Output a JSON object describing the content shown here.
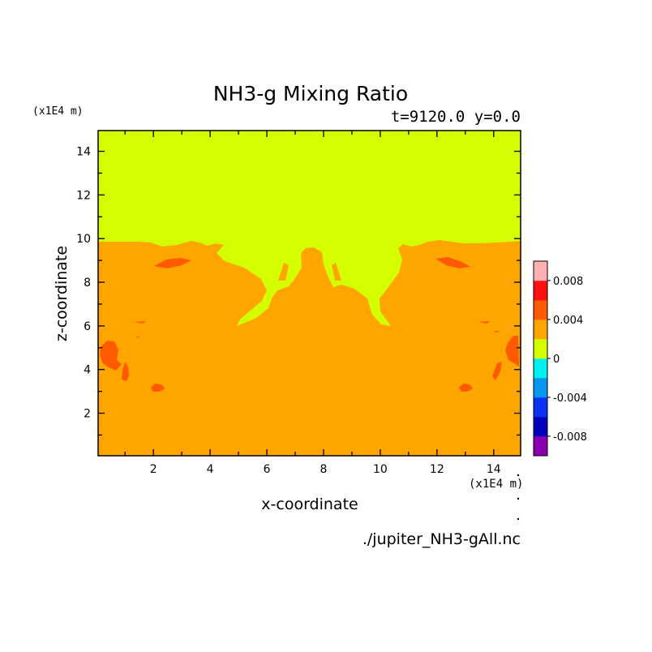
{
  "chart_data": {
    "type": "heatmap",
    "title": "NH3-g Mixing Ratio",
    "subtitle": "t=9120.0 y=0.0",
    "xlabel": "x-coordinate",
    "ylabel": "z-coordinate",
    "x_unit": "(x1E4 m)",
    "y_unit": "(x1E4 m)",
    "xlim": [
      0.05,
      14.95
    ],
    "ylim": [
      0.05,
      14.95
    ],
    "x_ticks": [
      2,
      4,
      6,
      8,
      10,
      12,
      14
    ],
    "y_ticks": [
      2,
      4,
      6,
      8,
      10,
      12,
      14
    ],
    "x_tick_labels": [
      "2",
      "4",
      "6",
      "8",
      "10",
      "12",
      "14"
    ],
    "y_tick_labels": [
      "2",
      "4",
      "6",
      "8",
      "10",
      "12",
      "14"
    ],
    "colorbar": {
      "min": -0.01,
      "max": 0.01,
      "step": 0.002,
      "tick_values": [
        0.008,
        0.004,
        0,
        -0.004,
        -0.008
      ],
      "tick_labels": [
        "0.008",
        "0.004",
        "0",
        "-0.004",
        "-0.008"
      ],
      "colors": [
        "#8a00b0",
        "#0000b8",
        "#0a32f0",
        "#0a96f0",
        "#00f0f0",
        "#d4ff00",
        "#ffa500",
        "#ff5a00",
        "#ff1010",
        "#ffb0b0"
      ]
    },
    "regions": {
      "top_layer": {
        "range": [
          0,
          0.002
        ],
        "color": "#d4ff00",
        "boundary_z": 9.7
      },
      "lower_layer": {
        "range": [
          0.002,
          0.004
        ],
        "color": "#ffa500"
      },
      "patches": {
        "range": [
          0.004,
          0.006
        ],
        "color": "#ff5a00"
      }
    },
    "source_file": "./jupiter_NH3-gAll.nc"
  }
}
